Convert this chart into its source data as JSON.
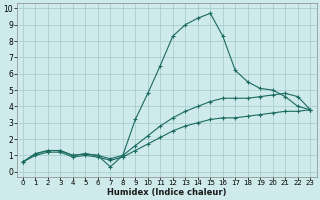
{
  "xlabel": "Humidex (Indice chaleur)",
  "background_color": "#ceeaea",
  "grid_color": "#aacece",
  "line_color": "#1a6a60",
  "xlim": [
    -0.5,
    23.5
  ],
  "ylim": [
    -0.3,
    10.3
  ],
  "xticks": [
    0,
    1,
    2,
    3,
    4,
    5,
    6,
    7,
    8,
    9,
    10,
    11,
    12,
    13,
    14,
    15,
    16,
    17,
    18,
    19,
    20,
    21,
    22,
    23
  ],
  "yticks": [
    0,
    1,
    2,
    3,
    4,
    5,
    6,
    7,
    8,
    9,
    10
  ],
  "curve1_x": [
    0,
    1,
    2,
    3,
    4,
    5,
    6,
    7,
    8,
    9,
    10,
    11,
    12,
    13,
    14,
    15,
    16,
    17,
    18,
    19,
    20,
    21,
    22,
    23
  ],
  "curve1_y": [
    0.6,
    1.1,
    1.3,
    1.3,
    1.0,
    1.1,
    1.0,
    0.3,
    1.0,
    3.2,
    4.8,
    6.5,
    8.3,
    9.0,
    9.4,
    9.7,
    8.3,
    6.2,
    5.5,
    5.1,
    5.0,
    4.6,
    4.0,
    3.8
  ],
  "curve2_x": [
    0,
    1,
    2,
    3,
    4,
    5,
    6,
    7,
    8,
    9,
    10,
    11,
    12,
    13,
    14,
    15,
    16,
    17,
    18,
    19,
    20,
    21,
    22,
    23
  ],
  "curve2_y": [
    0.6,
    1.1,
    1.3,
    1.3,
    1.0,
    1.1,
    1.0,
    0.8,
    1.0,
    1.6,
    2.2,
    2.8,
    3.3,
    3.7,
    4.0,
    4.3,
    4.5,
    4.5,
    4.5,
    4.6,
    4.7,
    4.8,
    4.6,
    3.8
  ],
  "curve3_x": [
    0,
    1,
    2,
    3,
    4,
    5,
    6,
    7,
    8,
    9,
    10,
    11,
    12,
    13,
    14,
    15,
    16,
    17,
    18,
    19,
    20,
    21,
    22,
    23
  ],
  "curve3_y": [
    0.6,
    1.0,
    1.2,
    1.2,
    0.9,
    1.0,
    0.9,
    0.7,
    0.9,
    1.3,
    1.7,
    2.1,
    2.5,
    2.8,
    3.0,
    3.2,
    3.3,
    3.3,
    3.4,
    3.5,
    3.6,
    3.7,
    3.7,
    3.8
  ],
  "xlabel_fontsize": 6.0,
  "tick_fontsize_x": 5.0,
  "tick_fontsize_y": 5.5
}
